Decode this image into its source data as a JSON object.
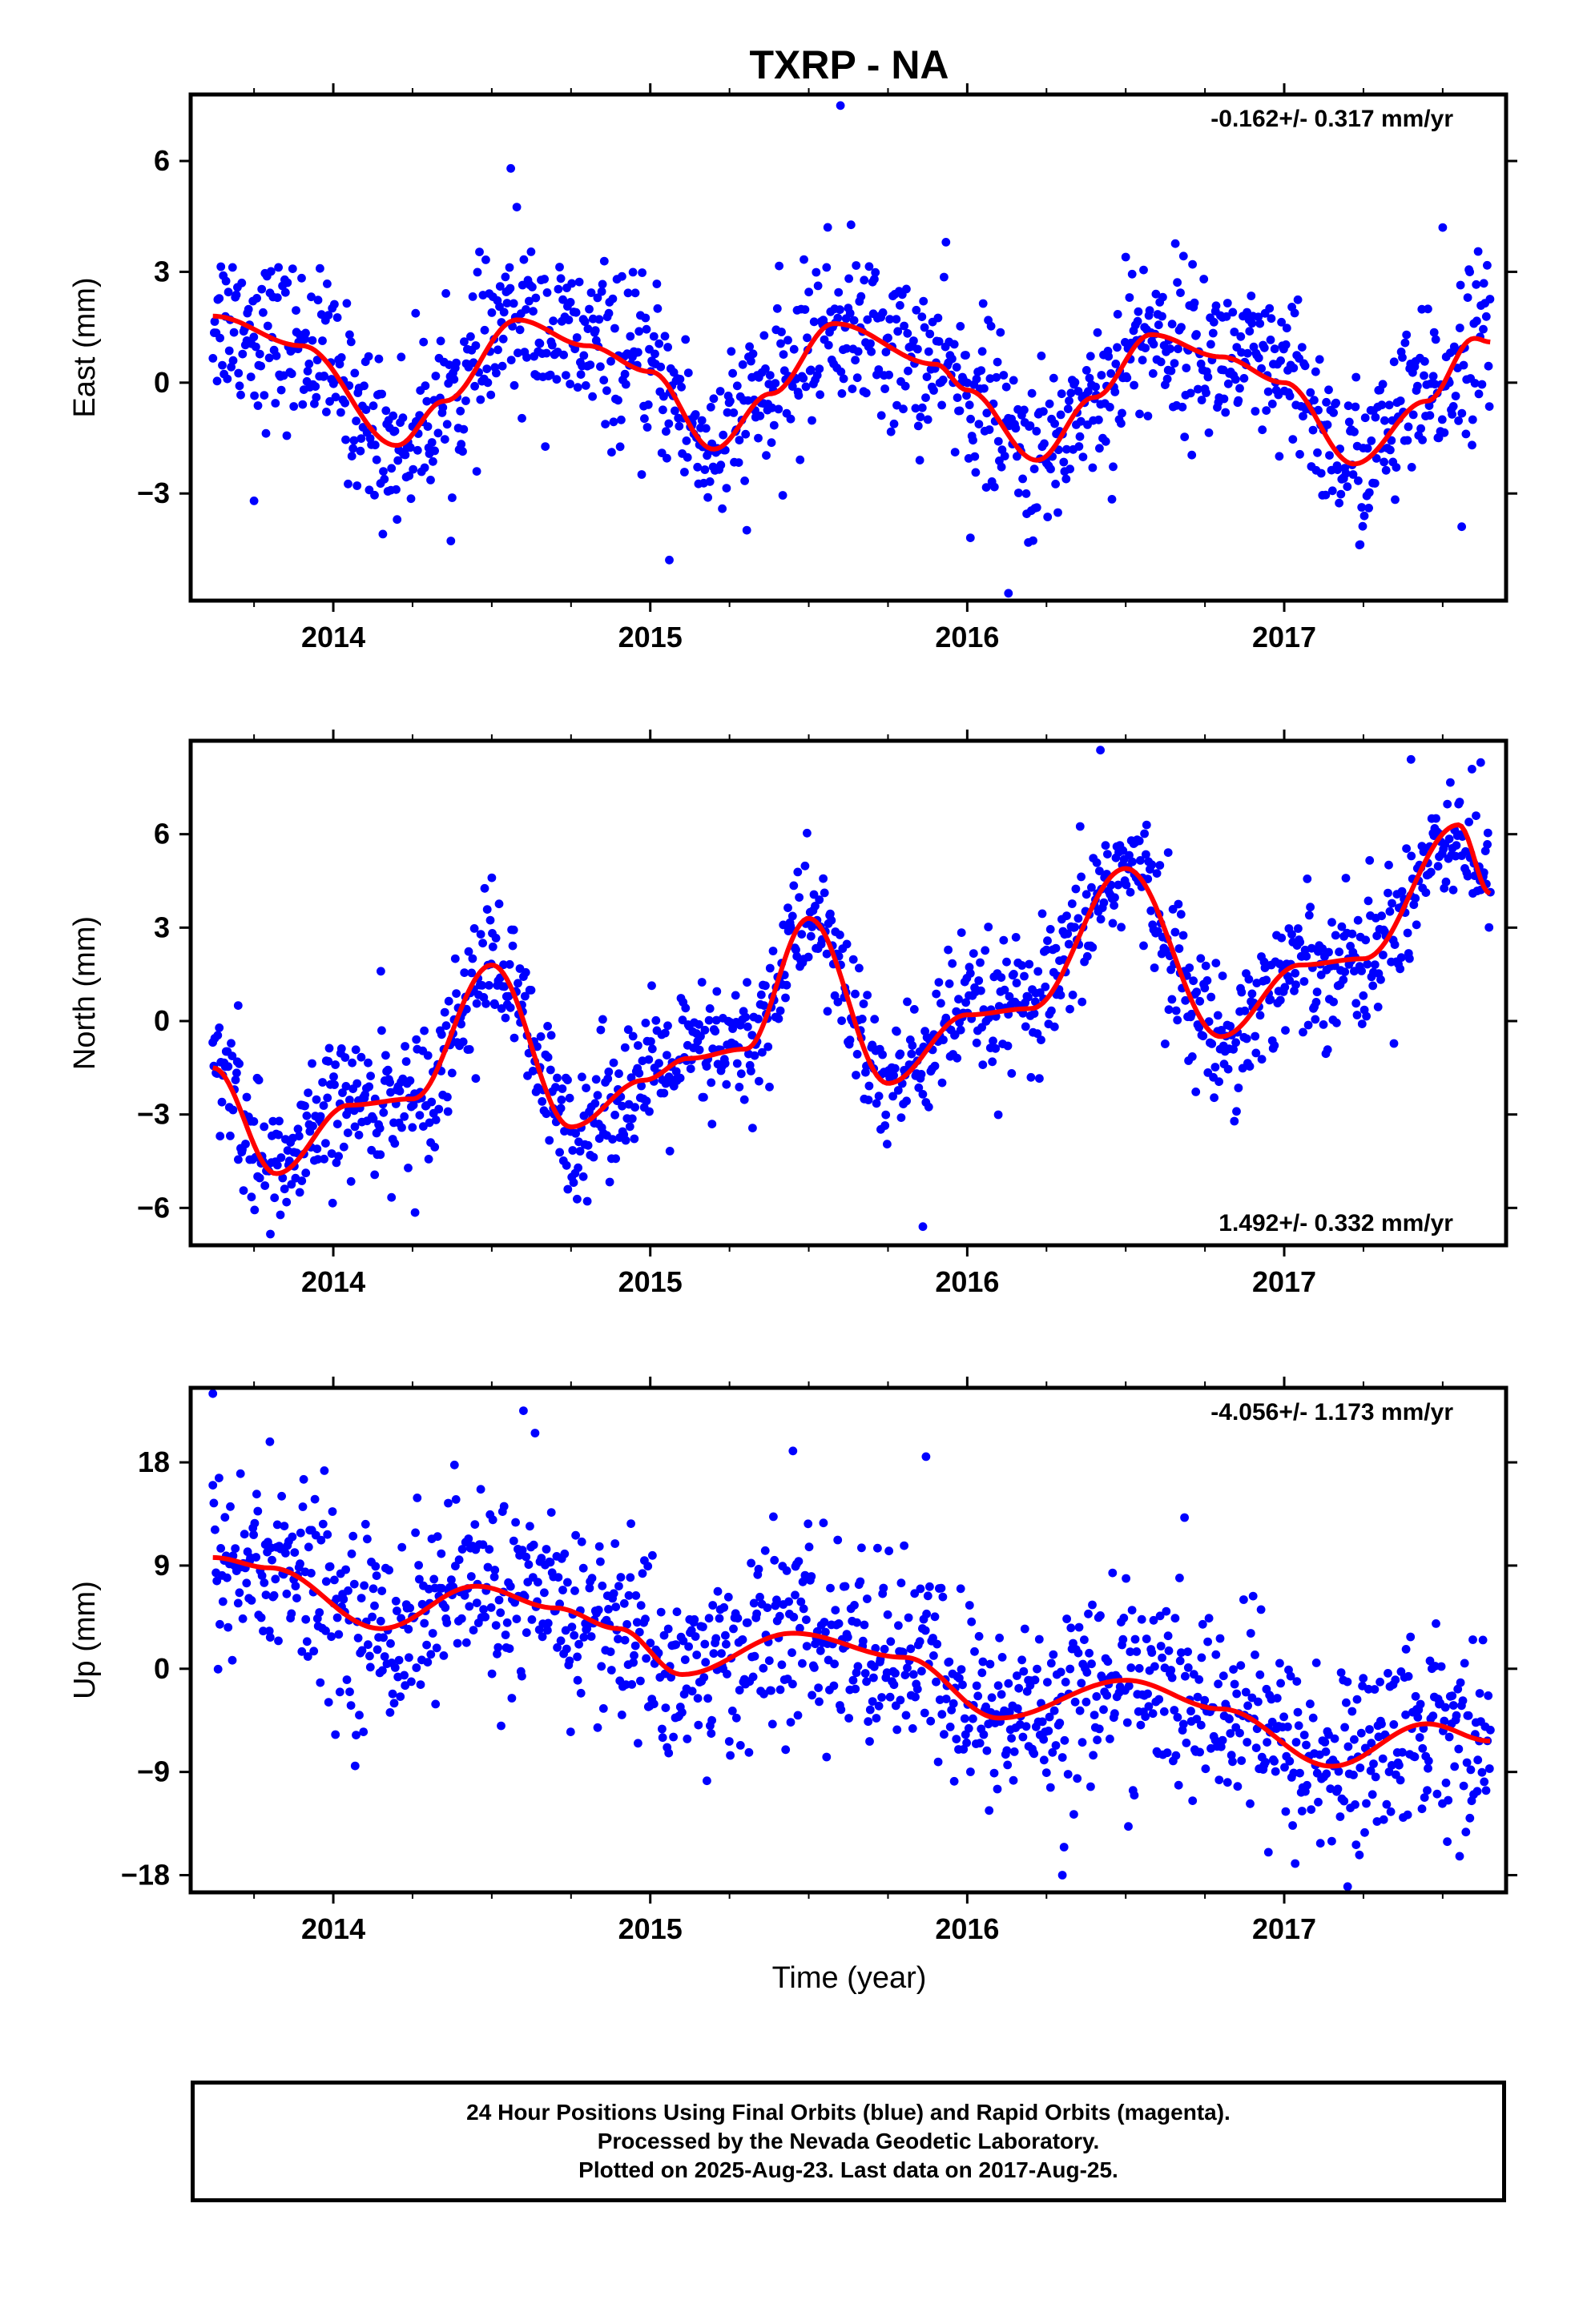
{
  "figure": {
    "title": "TXRP - NA",
    "xlabel": "Time (year)"
  },
  "caption": [
    "24 Hour Positions Using Final Orbits (blue) and Rapid Orbits (magenta).",
    "Processed by the Nevada Geodetic Laboratory.",
    "Plotted on 2025-Aug-23. Last data on 2017-Aug-25."
  ],
  "colors": {
    "points": "#0000ff",
    "fit": "#ff0000",
    "axes": "#000000"
  },
  "chart_data": [
    {
      "type": "scatter",
      "ylabel": "East (mm)",
      "rate": "-0.162+/- 0.317 mm/yr",
      "xlim": [
        2013.55,
        2017.7
      ],
      "ylim": [
        -5.9,
        7.8
      ],
      "x_ticks": [
        2014,
        2015,
        2016,
        2017
      ],
      "y_ticks": [
        -3,
        0,
        3,
        6
      ],
      "noise_mm": 1.1,
      "fit": [
        [
          2013.62,
          1.8
        ],
        [
          2013.9,
          1.0
        ],
        [
          2014.2,
          -1.7
        ],
        [
          2014.35,
          -0.5
        ],
        [
          2014.58,
          1.7
        ],
        [
          2014.8,
          1.0
        ],
        [
          2015.0,
          0.3
        ],
        [
          2015.2,
          -1.8
        ],
        [
          2015.38,
          -0.3
        ],
        [
          2015.58,
          1.6
        ],
        [
          2015.9,
          0.5
        ],
        [
          2016.0,
          -0.2
        ],
        [
          2016.22,
          -2.1
        ],
        [
          2016.4,
          -0.4
        ],
        [
          2016.58,
          1.3
        ],
        [
          2016.8,
          0.7
        ],
        [
          2017.0,
          0.0
        ],
        [
          2017.22,
          -2.2
        ],
        [
          2017.45,
          -0.5
        ],
        [
          2017.6,
          1.2
        ],
        [
          2017.65,
          1.1
        ]
      ],
      "outliers": [
        [
          2015.6,
          7.5
        ],
        [
          2016.13,
          -5.7
        ],
        [
          2014.56,
          5.8
        ],
        [
          2013.75,
          -3.2
        ],
        [
          2017.5,
          4.2
        ],
        [
          2016.5,
          3.4
        ],
        [
          2016.01,
          -4.2
        ],
        [
          2017.56,
          -3.9
        ],
        [
          2015.06,
          -4.8
        ]
      ]
    },
    {
      "type": "scatter",
      "ylabel": "North (mm)",
      "rate": "1.492+/- 0.332 mm/yr",
      "xlim": [
        2013.55,
        2017.7
      ],
      "ylim": [
        -7.2,
        9.0
      ],
      "x_ticks": [
        2014,
        2015,
        2016,
        2017
      ],
      "y_ticks": [
        -6,
        -3,
        0,
        3,
        6
      ],
      "noise_mm": 1.1,
      "fit": [
        [
          2013.62,
          -1.5
        ],
        [
          2013.82,
          -4.9
        ],
        [
          2014.05,
          -2.7
        ],
        [
          2014.25,
          -2.5
        ],
        [
          2014.5,
          1.8
        ],
        [
          2014.75,
          -3.4
        ],
        [
          2014.98,
          -1.9
        ],
        [
          2015.12,
          -1.2
        ],
        [
          2015.3,
          -0.9
        ],
        [
          2015.5,
          3.3
        ],
        [
          2015.75,
          -2.0
        ],
        [
          2016.0,
          0.2
        ],
        [
          2016.2,
          0.4
        ],
        [
          2016.5,
          4.9
        ],
        [
          2016.8,
          -0.5
        ],
        [
          2017.05,
          1.8
        ],
        [
          2017.25,
          2.0
        ],
        [
          2017.55,
          6.3
        ],
        [
          2017.65,
          4.1
        ]
      ],
      "outliers": [
        [
          2014.5,
          4.6
        ],
        [
          2013.7,
          0.5
        ],
        [
          2014.74,
          -5.4
        ],
        [
          2015.86,
          -6.6
        ],
        [
          2016.42,
          8.7
        ],
        [
          2017.4,
          8.4
        ],
        [
          2017.62,
          8.3
        ],
        [
          2014.15,
          1.6
        ]
      ]
    },
    {
      "type": "scatter",
      "ylabel": "Up (mm)",
      "rate": "-4.056+/- 1.173 mm/yr",
      "xlim": [
        2013.55,
        2017.7
      ],
      "ylim": [
        -19.5,
        24.5
      ],
      "x_ticks": [
        2014,
        2015,
        2016,
        2017
      ],
      "y_ticks": [
        -18,
        -9,
        0,
        9,
        18
      ],
      "noise_mm": 4.2,
      "fit": [
        [
          2013.62,
          9.7
        ],
        [
          2013.8,
          8.8
        ],
        [
          2014.15,
          3.5
        ],
        [
          2014.45,
          7.2
        ],
        [
          2014.7,
          5.3
        ],
        [
          2014.9,
          3.5
        ],
        [
          2015.1,
          -0.5
        ],
        [
          2015.45,
          3.1
        ],
        [
          2015.8,
          1.0
        ],
        [
          2016.1,
          -4.3
        ],
        [
          2016.5,
          -1.0
        ],
        [
          2016.8,
          -3.5
        ],
        [
          2017.15,
          -8.5
        ],
        [
          2017.45,
          -4.8
        ],
        [
          2017.65,
          -6.3
        ]
      ],
      "outliers": [
        [
          2013.62,
          24.0
        ],
        [
          2014.6,
          22.5
        ],
        [
          2015.45,
          19.0
        ],
        [
          2015.87,
          18.5
        ],
        [
          2016.3,
          -18.0
        ],
        [
          2017.2,
          -19.0
        ],
        [
          2013.8,
          19.8
        ],
        [
          2016.95,
          -16.0
        ]
      ]
    }
  ]
}
